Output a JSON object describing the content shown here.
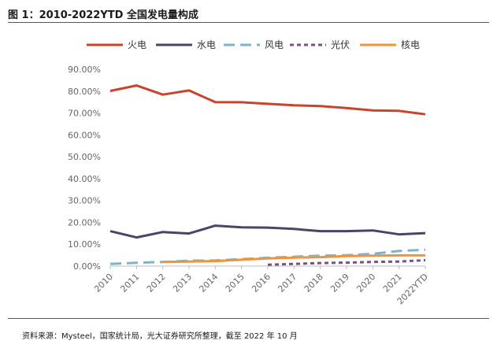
{
  "header": {
    "title": "图 1：2010-2022YTD 全国发电量构成"
  },
  "footer": {
    "source": "资料来源：Mysteel，国家统计局，光大证券研究所整理，截至 2022 年 10 月"
  },
  "chart_data": {
    "type": "line",
    "title": "图 1：2010-2022YTD 全国发电量构成",
    "xlabel": "",
    "ylabel": "",
    "categories": [
      "2010",
      "2011",
      "2012",
      "2013",
      "2014",
      "2015",
      "2016",
      "2017",
      "2018",
      "2019",
      "2020",
      "2021",
      "2022YTD"
    ],
    "ylim": [
      0,
      90
    ],
    "yticks": [
      "0.00%",
      "10.00%",
      "20.00%",
      "30.00%",
      "40.00%",
      "50.00%",
      "60.00%",
      "70.00%",
      "80.00%",
      "90.00%"
    ],
    "grid": false,
    "legend_position": "top",
    "series": [
      {
        "name": "火电",
        "color": "#c8452c",
        "dash": "solid",
        "values": [
          80.1,
          82.6,
          78.4,
          80.3,
          75.0,
          74.9,
          74.2,
          73.5,
          73.2,
          72.3,
          71.2,
          71.0,
          69.4
        ]
      },
      {
        "name": "水电",
        "color": "#4a4468",
        "dash": "solid",
        "values": [
          16.0,
          13.1,
          15.6,
          14.9,
          18.5,
          17.7,
          17.6,
          17.0,
          16.0,
          16.0,
          16.3,
          14.5,
          15.1
        ]
      },
      {
        "name": "风电",
        "color": "#7fb3c8",
        "dash": "long",
        "values": [
          1.0,
          1.5,
          1.9,
          2.5,
          2.6,
          3.2,
          3.8,
          4.3,
          4.8,
          5.0,
          5.6,
          6.9,
          7.5
        ]
      },
      {
        "name": "光伏",
        "color": "#7a4f86",
        "dash": "short",
        "values": [
          null,
          null,
          null,
          null,
          null,
          null,
          0.6,
          1.0,
          1.4,
          1.6,
          1.9,
          2.1,
          2.7
        ]
      },
      {
        "name": "核电",
        "color": "#f0933a",
        "dash": "solid",
        "values": [
          null,
          null,
          1.9,
          2.1,
          2.3,
          2.9,
          3.5,
          3.9,
          4.1,
          4.6,
          4.8,
          4.9,
          4.9
        ]
      }
    ]
  }
}
